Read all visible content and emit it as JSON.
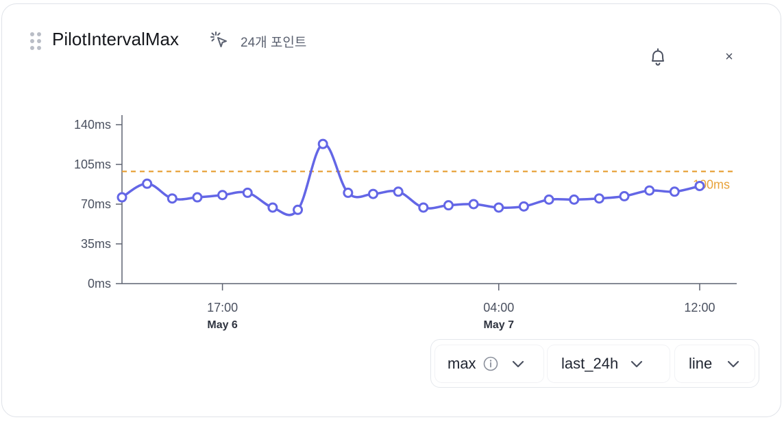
{
  "header": {
    "title": "PilotIntervalMax",
    "points_label": "24개 포인트"
  },
  "controls": {
    "aggregate": "max",
    "range": "last_24h",
    "chart_type": "line"
  },
  "colors": {
    "line": "#6366e6",
    "threshold": "#e8a23a",
    "axis": "#5d6270",
    "text": "#1f2430"
  },
  "chart_data": {
    "type": "line",
    "title": "",
    "xlabel": "",
    "ylabel": "",
    "ylim": [
      0,
      140
    ],
    "y_ticks": [
      "0ms",
      "35ms",
      "70ms",
      "105ms",
      "140ms"
    ],
    "y_tick_values": [
      0,
      35,
      70,
      105,
      140
    ],
    "x_ticks": [
      {
        "time": "17:00",
        "date": "May 6"
      },
      {
        "time": "04:00",
        "date": "May 7"
      },
      {
        "time": "12:00",
        "date": ""
      }
    ],
    "x": [
      "May 6 13:00",
      "May 6 14:00",
      "May 6 15:00",
      "May 6 16:00",
      "May 6 17:00",
      "May 6 18:00",
      "May 6 19:00",
      "May 6 20:00",
      "May 6 21:00",
      "May 6 22:00",
      "May 6 23:00",
      "May 7 00:00",
      "May 7 01:00",
      "May 7 02:00",
      "May 7 03:00",
      "May 7 04:00",
      "May 7 05:00",
      "May 7 06:00",
      "May 7 07:00",
      "May 7 08:00",
      "May 7 09:00",
      "May 7 10:00",
      "May 7 11:00",
      "May 7 12:00"
    ],
    "series": [
      {
        "values": [
          76,
          88,
          75,
          76,
          78,
          80,
          67,
          65,
          123,
          80,
          79,
          81,
          67,
          69,
          70,
          67,
          68,
          74,
          74,
          75,
          77,
          82,
          81,
          86
        ]
      }
    ],
    "threshold": {
      "value": 100,
      "label": "100ms"
    },
    "grid": false
  }
}
